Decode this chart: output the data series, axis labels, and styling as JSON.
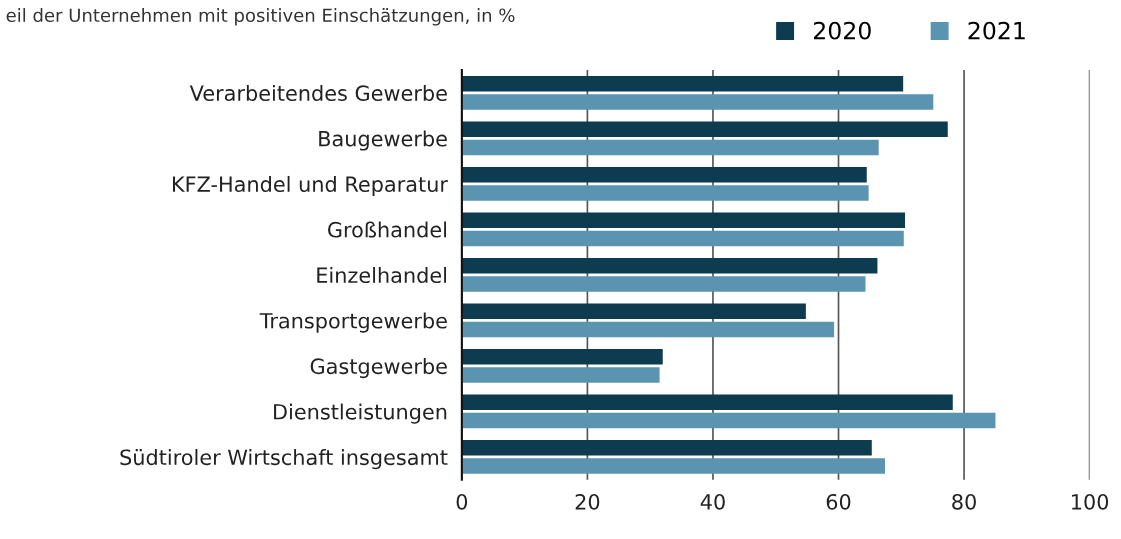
{
  "chart_data": {
    "type": "bar",
    "orientation": "horizontal",
    "title": "eil der Unternehmen mit positiven Einschätzungen, in %",
    "categories": [
      "Verarbeitendes Gewerbe",
      "Baugewerbe",
      "KFZ-Handel und Reparatur",
      "Großhandel",
      "Einzelhandel",
      "Transportgewerbe",
      "Gastgewerbe",
      "Dienstleistungen",
      "Südtiroler Wirtschaft insgesamt"
    ],
    "series": [
      {
        "name": "2020",
        "color": "#0d3b4f",
        "values": [
          70.3,
          77.4,
          64.5,
          70.6,
          66.2,
          54.8,
          32.0,
          78.2,
          65.3
        ]
      },
      {
        "name": "2021",
        "color": "#5a94b0",
        "values": [
          75.1,
          66.4,
          64.8,
          70.4,
          64.3,
          59.3,
          31.5,
          85.0,
          67.4
        ]
      }
    ],
    "xlim": [
      0,
      100
    ],
    "xticks": [
      0,
      20,
      40,
      60,
      80,
      100
    ],
    "grid": "x",
    "legend": "top right"
  }
}
